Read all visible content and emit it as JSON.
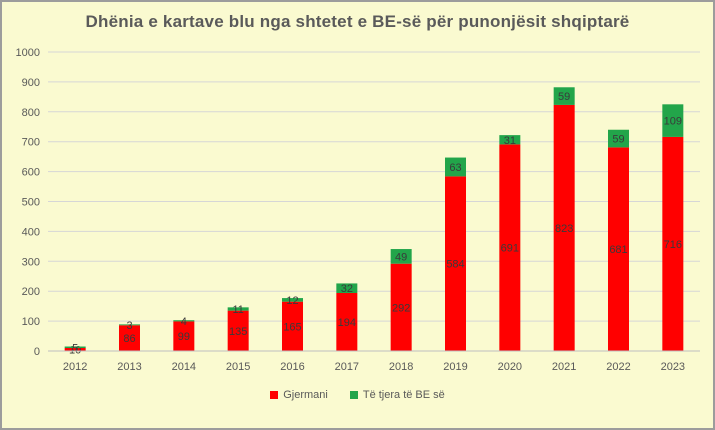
{
  "chart_data": {
    "type": "bar",
    "stacked": true,
    "title": "Dhënia e kartave blu nga shtetet e BE-së për punonjësit shqiptarë",
    "categories": [
      "2012",
      "2013",
      "2014",
      "2015",
      "2016",
      "2017",
      "2018",
      "2019",
      "2020",
      "2021",
      "2022",
      "2023"
    ],
    "series": [
      {
        "name": "Gjermani",
        "color": "#ff0000",
        "values": [
          10,
          86,
          99,
          135,
          165,
          194,
          292,
          584,
          691,
          823,
          681,
          716
        ]
      },
      {
        "name": "Të tjera të BE së",
        "color": "#22a54a",
        "values": [
          5,
          3,
          4,
          11,
          12,
          32,
          49,
          63,
          31,
          59,
          59,
          109
        ]
      }
    ],
    "ylim": [
      0,
      1000
    ],
    "yticks": [
      0,
      100,
      200,
      300,
      400,
      500,
      600,
      700,
      800,
      900,
      1000
    ],
    "grid": true,
    "legend_position": "bottom"
  }
}
